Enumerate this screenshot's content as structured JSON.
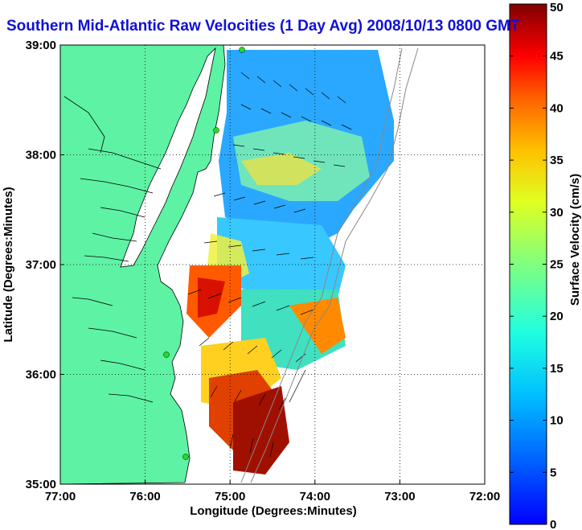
{
  "title": "Southern Mid-Atlantic Raw Velocities (1 Day Avg) 2008/10/13 0800 GMT",
  "map": {
    "xlabel": "Longitude (Degrees:Minutes)",
    "ylabel": "Latitude (Degrees:Minutes)",
    "x_ticks": [
      "77:00",
      "76:00",
      "75:00",
      "74:00",
      "73:00",
      "72:00"
    ],
    "y_ticks": [
      "39:00",
      "38:00",
      "37:00",
      "36:00",
      "35:00"
    ],
    "lon_range": [
      -77,
      -72
    ],
    "lat_range": [
      35,
      39
    ],
    "grid": "dotted",
    "land_color": "#5ef2a4",
    "water_color": "#ffffff",
    "coastline_color": "#000000",
    "bathymetry_color": "#888888",
    "station_color": "#22dd22"
  },
  "colorbar": {
    "label": "Surface Velocity (cm/s)",
    "ticks": [
      "0",
      "5",
      "10",
      "15",
      "20",
      "25",
      "30",
      "35",
      "40",
      "45",
      "50"
    ],
    "range": [
      0,
      50
    ],
    "colormap": "jet"
  }
}
